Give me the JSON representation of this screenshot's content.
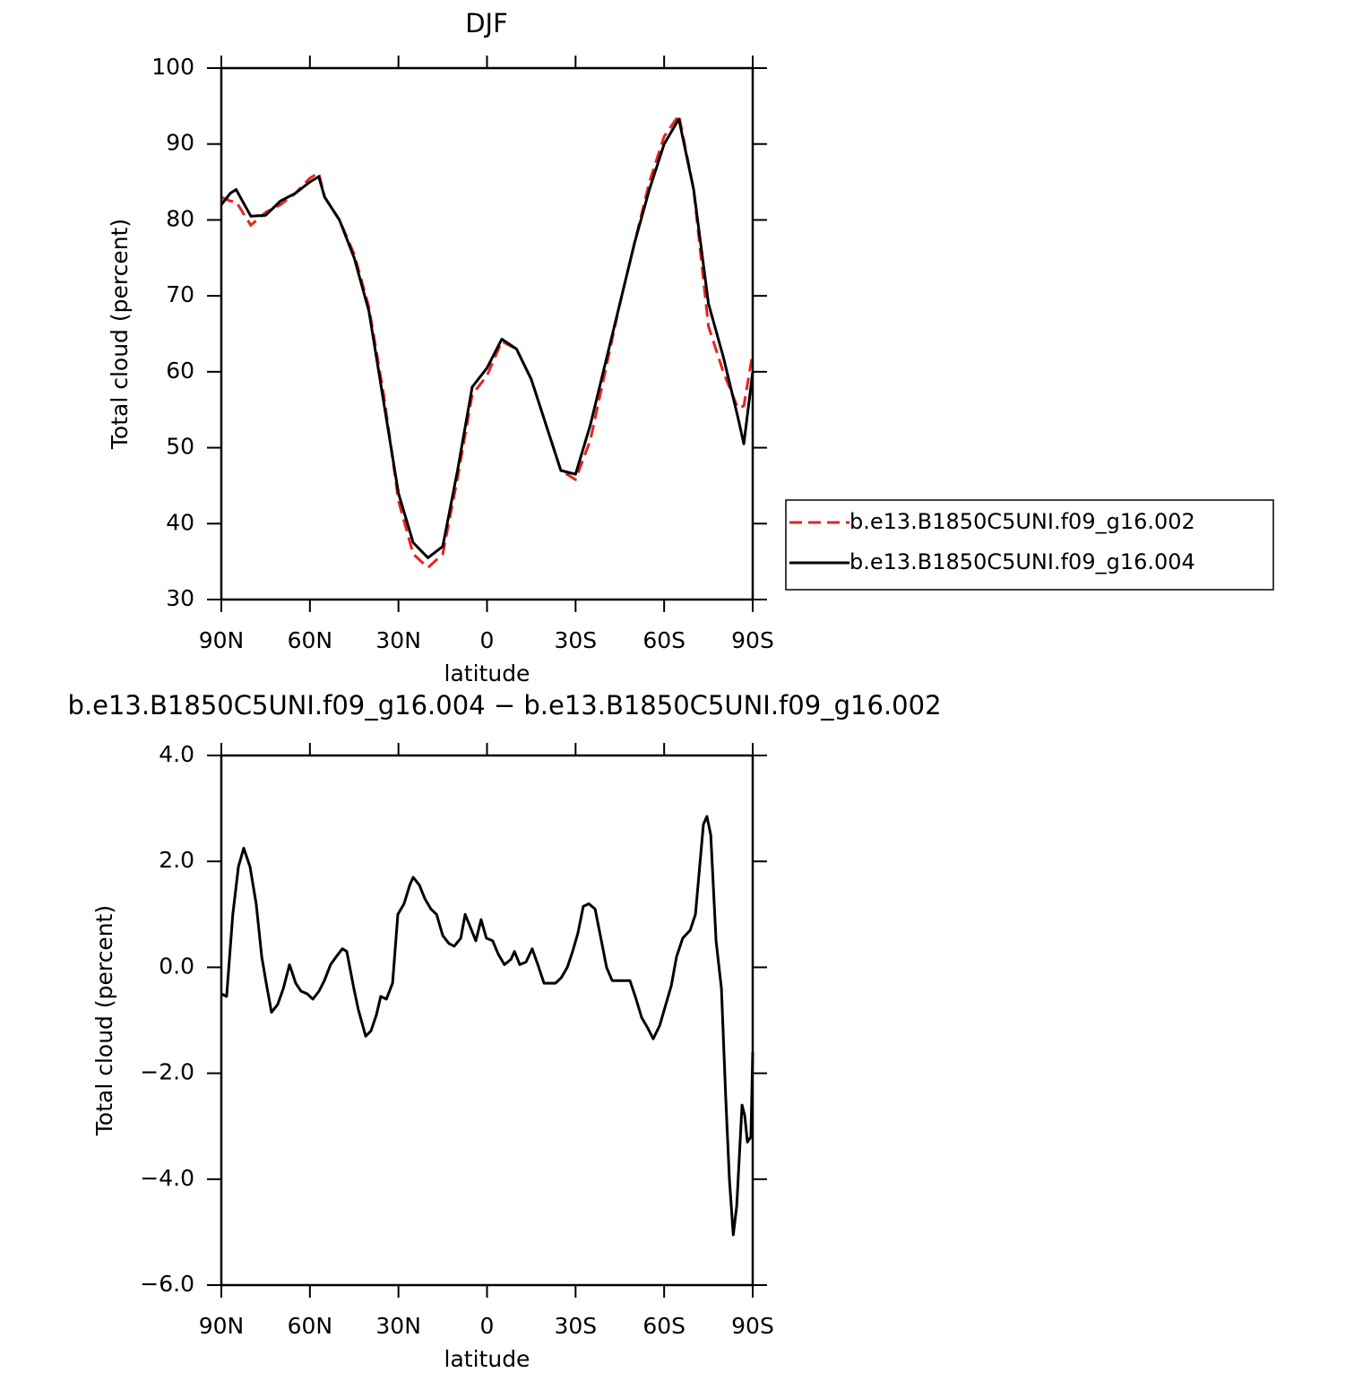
{
  "chart_data": [
    {
      "type": "line",
      "title": "DJF",
      "xlabel": "latitude",
      "ylabel": "Total cloud (percent)",
      "xlim": [
        90,
        -90
      ],
      "ylim": [
        30,
        100
      ],
      "xticks": [
        {
          "value": 90,
          "label": "90N"
        },
        {
          "value": 60,
          "label": "60N"
        },
        {
          "value": 30,
          "label": "30N"
        },
        0,
        {
          "value": -30,
          "label": "30S"
        },
        {
          "value": -60,
          "label": "60S"
        },
        {
          "value": -90,
          "label": "90S"
        }
      ],
      "yticks": [
        30,
        40,
        50,
        60,
        70,
        80,
        90,
        100
      ],
      "legend": "right",
      "x": [
        90,
        87,
        85,
        80,
        75,
        70,
        65,
        60,
        57,
        55,
        50,
        45,
        40,
        35,
        30,
        25,
        20,
        15,
        10,
        5,
        0,
        -5,
        -10,
        -15,
        -20,
        -25,
        -30,
        -35,
        -40,
        -45,
        -50,
        -55,
        -60,
        -65,
        -70,
        -75,
        -80,
        -85,
        -87,
        -90
      ],
      "series": [
        {
          "name": "b.e13.B1850C5UNI.f09_g16.002",
          "color": "#e8231f",
          "style": "dashed",
          "values": [
            83,
            82.5,
            82.4,
            79.3,
            81,
            82,
            83.5,
            85.5,
            86.2,
            83,
            80,
            75.5,
            68.5,
            57,
            43,
            36,
            34.2,
            36,
            46,
            57,
            59.5,
            64,
            63,
            59,
            53,
            47,
            45.8,
            51,
            60,
            69,
            77,
            85,
            91,
            93.8,
            84,
            66,
            60,
            55.2,
            55.5,
            62.5
          ]
        },
        {
          "name": "b.e13.B1850C5UNI.f09_g16.004",
          "color": "#000000",
          "style": "solid",
          "values": [
            82,
            83.5,
            84,
            80.5,
            80.6,
            82.5,
            83.5,
            85,
            85.7,
            83,
            80,
            75,
            68,
            56,
            44,
            37.5,
            35.5,
            37,
            47,
            58,
            60.5,
            64.3,
            63,
            59,
            53,
            47,
            46.5,
            53,
            61,
            69,
            77,
            84,
            90,
            93.3,
            84,
            69,
            62,
            54,
            50.5,
            60
          ]
        }
      ]
    },
    {
      "type": "line",
      "title": "b.e13.B1850C5UNI.f09_g16.004 − b.e13.B1850C5UNI.f09_g16.002",
      "xlabel": "latitude",
      "ylabel": "Total cloud (percent)",
      "xlim": [
        90,
        -90
      ],
      "ylim": [
        -6,
        4
      ],
      "xticks": [
        {
          "value": 90,
          "label": "90N"
        },
        {
          "value": 60,
          "label": "60N"
        },
        {
          "value": 30,
          "label": "30N"
        },
        0,
        {
          "value": -30,
          "label": "30S"
        },
        {
          "value": -60,
          "label": "60S"
        },
        {
          "value": -90,
          "label": "90S"
        }
      ],
      "yticks": [
        {
          "value": -6,
          "label": "−6.0"
        },
        {
          "value": -4,
          "label": "−4.0"
        },
        {
          "value": -2,
          "label": "−2.0"
        },
        {
          "value": 0,
          "label": "0.0"
        },
        {
          "value": 2,
          "label": "2.0"
        },
        {
          "value": 4,
          "label": "4.0"
        }
      ],
      "x": [
        90,
        88.2,
        86.1,
        84.2,
        82.4,
        80.3,
        78.2,
        76.3,
        74.8,
        73,
        70.9,
        69,
        66.9,
        64.8,
        63,
        60.9,
        59,
        56.9,
        55.1,
        53,
        51.1,
        49,
        47.5,
        45.1,
        43.6,
        41.1,
        39.3,
        37.5,
        36,
        34.1,
        32,
        30.2,
        28.1,
        26.2,
        25,
        22.9,
        21.1,
        19,
        17.1,
        15,
        12.9,
        11.1,
        8.9,
        7.4,
        5.6,
        3.8,
        2,
        0.2,
        -1.9,
        -3.8,
        -5.9,
        -8.1,
        -9.3,
        -11.1,
        -13.2,
        -15.3,
        -17.2,
        -19.3,
        -21.1,
        -23.2,
        -25.1,
        -27.2,
        -29,
        -30.8,
        -32.6,
        -34.5,
        -36.6,
        -38.4,
        -40.5,
        -42.4,
        -44.5,
        -46.6,
        -48.4,
        -50.5,
        -52.4,
        -54.5,
        -56.3,
        -58.5,
        -60.3,
        -62.4,
        -64.2,
        -66.3,
        -68.8,
        -70.6,
        -73.3,
        -74.5,
        -75.8,
        -77.6,
        -79.4,
        -80.9,
        -82.1,
        -83.4,
        -84.6,
        -86.4,
        -87.3,
        -88.2,
        -89.4,
        -90
      ],
      "series": [
        {
          "color": "#000000",
          "style": "solid",
          "values": [
            -0.5,
            -0.55,
            1.0,
            1.9,
            2.25,
            1.9,
            1.2,
            0.2,
            -0.3,
            -0.85,
            -0.7,
            -0.4,
            0.05,
            -0.3,
            -0.45,
            -0.5,
            -0.6,
            -0.45,
            -0.25,
            0.05,
            0.2,
            0.35,
            0.3,
            -0.4,
            -0.8,
            -1.3,
            -1.2,
            -0.9,
            -0.55,
            -0.6,
            -0.3,
            1.0,
            1.2,
            1.55,
            1.7,
            1.55,
            1.3,
            1.1,
            1.0,
            0.6,
            0.45,
            0.4,
            0.55,
            1.0,
            0.75,
            0.5,
            0.9,
            0.55,
            0.5,
            0.25,
            0.05,
            0.15,
            0.3,
            0.05,
            0.1,
            0.35,
            0.05,
            -0.3,
            -0.3,
            -0.3,
            -0.2,
            0.0,
            0.3,
            0.65,
            1.15,
            1.2,
            1.1,
            0.6,
            0.0,
            -0.25,
            -0.25,
            -0.25,
            -0.25,
            -0.6,
            -0.95,
            -1.15,
            -1.35,
            -1.1,
            -0.75,
            -0.35,
            0.2,
            0.55,
            0.7,
            1.0,
            2.7,
            2.85,
            2.5,
            0.5,
            -0.4,
            -2.5,
            -4.0,
            -5.05,
            -4.5,
            -2.6,
            -2.8,
            -3.3,
            -3.2,
            -1.6
          ]
        }
      ]
    }
  ]
}
